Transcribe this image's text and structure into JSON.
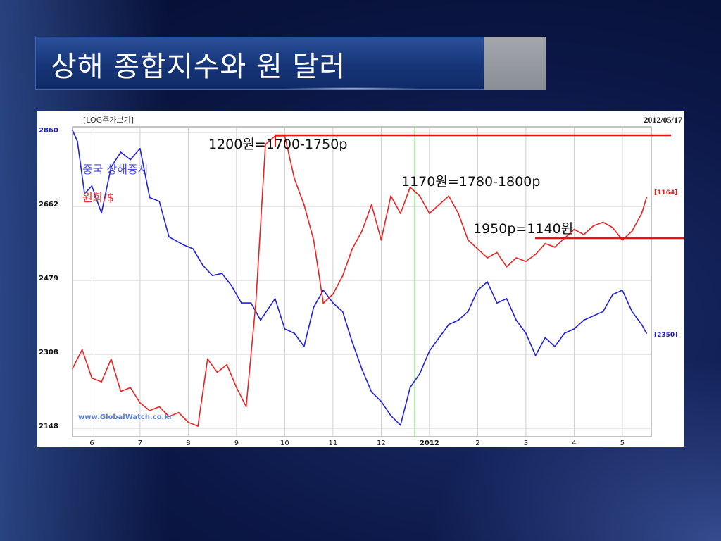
{
  "slide": {
    "title": "상해 종합지수와 원 달러"
  },
  "colors": {
    "shanghai": "#2222dd",
    "won": "#ee2222",
    "marker": "#55cc44",
    "grid": "#cfcfcf"
  },
  "chart_data": {
    "type": "line",
    "header_left": "[LOG주가보기]",
    "header_right": "2012/05/17",
    "watermark": "www.GlobalWatch.co.kr",
    "y_ticks": [
      "2860",
      "2662",
      "2479",
      "2308",
      "2148"
    ],
    "x_ticks": [
      "6",
      "7",
      "8",
      "9",
      "10",
      "11",
      "12",
      "2012",
      "2",
      "3",
      "4",
      "5"
    ],
    "legend": [
      {
        "label": "중국 상해증시",
        "color": "#2222dd"
      },
      {
        "label": "원화/$",
        "color": "#ee2222"
      }
    ],
    "last_value_labels": {
      "won": "[1164]",
      "shanghai": "[2350]"
    },
    "annotations": [
      "1200원=1700-1750p",
      "1170원=1780-1800p",
      "1950p=1140원"
    ],
    "ylabel_scale": "log",
    "series": [
      {
        "name": "중국 상해증시",
        "x": [
          5.6,
          5.7,
          5.85,
          6.0,
          6.2,
          6.4,
          6.6,
          6.8,
          7.0,
          7.2,
          7.4,
          7.6,
          7.9,
          8.1,
          8.3,
          8.5,
          8.7,
          8.9,
          9.1,
          9.3,
          9.5,
          9.8,
          10.0,
          10.2,
          10.4,
          10.6,
          10.8,
          11.0,
          11.2,
          11.4,
          11.6,
          11.8,
          12.0,
          12.2,
          12.4,
          12.6,
          12.8,
          13.0,
          13.2,
          13.4,
          13.6,
          13.8,
          14.0,
          14.2,
          14.4,
          14.6,
          14.8,
          15.0,
          15.2,
          15.4,
          15.6,
          15.8,
          16.0,
          16.2,
          16.4,
          16.6,
          16.8,
          17.0,
          17.2,
          17.4,
          17.5
        ],
        "values": [
          2860,
          2830,
          2690,
          2710,
          2640,
          2760,
          2800,
          2780,
          2810,
          2680,
          2670,
          2580,
          2560,
          2550,
          2510,
          2485,
          2490,
          2460,
          2420,
          2420,
          2380,
          2430,
          2360,
          2350,
          2320,
          2410,
          2450,
          2420,
          2400,
          2330,
          2270,
          2220,
          2200,
          2170,
          2150,
          2230,
          2260,
          2310,
          2340,
          2370,
          2380,
          2400,
          2450,
          2470,
          2420,
          2430,
          2380,
          2350,
          2300,
          2340,
          2320,
          2350,
          2360,
          2380,
          2390,
          2400,
          2440,
          2450,
          2400,
          2370,
          2350
        ]
      },
      {
        "name": "원화/$",
        "x": [
          5.6,
          5.8,
          6.0,
          6.2,
          6.4,
          6.6,
          6.8,
          7.0,
          7.2,
          7.4,
          7.6,
          7.8,
          8.0,
          8.2,
          8.4,
          8.6,
          8.8,
          9.0,
          9.2,
          9.4,
          9.6,
          9.8,
          10.0,
          10.2,
          10.4,
          10.6,
          10.8,
          11.0,
          11.2,
          11.4,
          11.6,
          11.8,
          12.0,
          12.2,
          12.4,
          12.6,
          12.8,
          13.0,
          13.2,
          13.4,
          13.6,
          13.8,
          14.0,
          14.2,
          14.4,
          14.6,
          14.8,
          15.0,
          15.2,
          15.4,
          15.6,
          15.8,
          16.0,
          16.2,
          16.4,
          16.6,
          16.8,
          17.0,
          17.2,
          17.4,
          17.5
        ],
        "values": [
          1070,
          1080,
          1065,
          1063,
          1075,
          1058,
          1060,
          1052,
          1048,
          1050,
          1045,
          1047,
          1042,
          1040,
          1075,
          1068,
          1072,
          1060,
          1050,
          1105,
          1195,
          1200,
          1200,
          1175,
          1160,
          1140,
          1105,
          1110,
          1120,
          1135,
          1145,
          1160,
          1140,
          1165,
          1155,
          1170,
          1165,
          1155,
          1160,
          1165,
          1155,
          1140,
          1135,
          1130,
          1133,
          1125,
          1130,
          1128,
          1132,
          1138,
          1136,
          1141,
          1146,
          1143,
          1148,
          1150,
          1147,
          1140,
          1145,
          1155,
          1164
        ]
      }
    ]
  }
}
